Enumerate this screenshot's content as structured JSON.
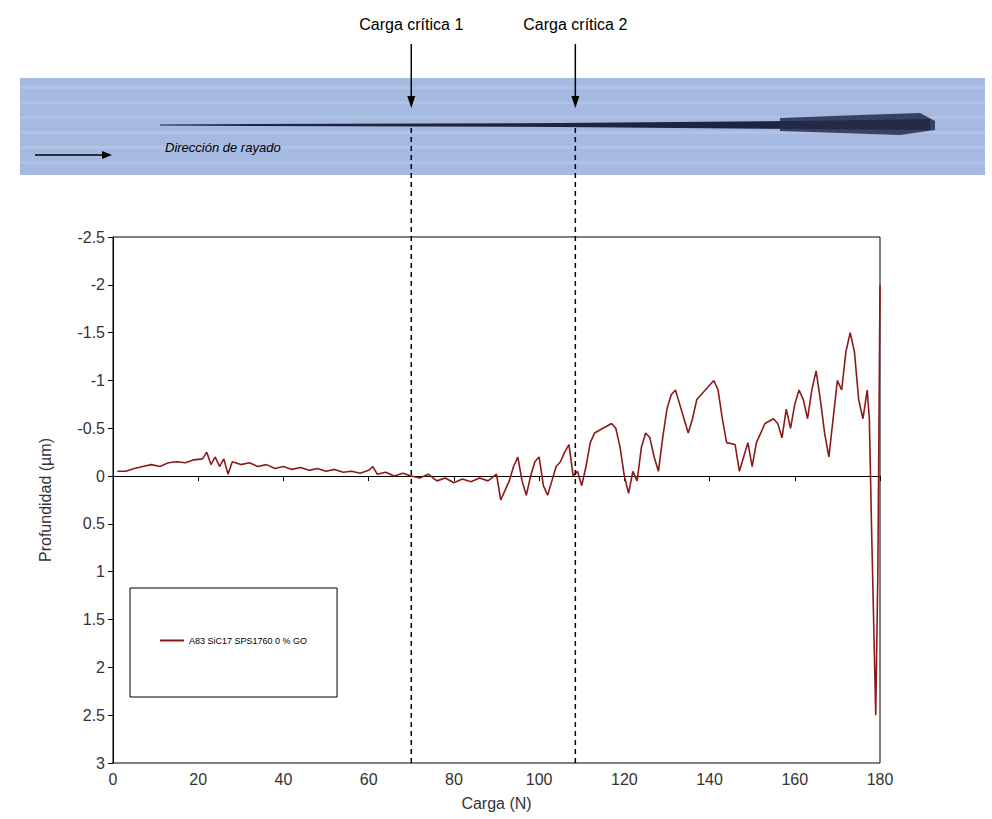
{
  "chart_data": {
    "type": "line",
    "x_label": "Carga (N)",
    "y_label": "Profundidad (µm)",
    "x": [
      1,
      3,
      5,
      7,
      9,
      11,
      13,
      15,
      17,
      19,
      21,
      22,
      23,
      24,
      25,
      26,
      27,
      28,
      30,
      32,
      34,
      36,
      38,
      40,
      42,
      44,
      46,
      48,
      50,
      52,
      54,
      56,
      58,
      60,
      61,
      62,
      64,
      66,
      68,
      70,
      72,
      74,
      76,
      78,
      80,
      82,
      84,
      86,
      88,
      90,
      91,
      92,
      93,
      94,
      95,
      96,
      97,
      98,
      99,
      100,
      101,
      102,
      103,
      104,
      105,
      106,
      107,
      108,
      109,
      110,
      111,
      112,
      113,
      115,
      117,
      118,
      119,
      120,
      121,
      122,
      123,
      124,
      125,
      126,
      127,
      128,
      129,
      130,
      131,
      132,
      133,
      134,
      135,
      136,
      137,
      139,
      141,
      142,
      143,
      144,
      146,
      147,
      148,
      149,
      150,
      151,
      152,
      153,
      155,
      156,
      157,
      158,
      159,
      160,
      161,
      162,
      163,
      164,
      165,
      166,
      167,
      168,
      169,
      170,
      171,
      172,
      173,
      174,
      175,
      176,
      177,
      177.5,
      178,
      178.5,
      179,
      179.5,
      180
    ],
    "series": [
      {
        "name": "A83 SiC17 SPS1760 0 % GO",
        "color": "#8b1a1a",
        "line_style": "solid",
        "values": [
          -0.05,
          -0.05,
          -0.08,
          -0.1,
          -0.12,
          -0.1,
          -0.14,
          -0.15,
          -0.14,
          -0.17,
          -0.18,
          -0.25,
          -0.12,
          -0.2,
          -0.1,
          -0.18,
          -0.02,
          -0.15,
          -0.12,
          -0.14,
          -0.1,
          -0.12,
          -0.08,
          -0.1,
          -0.07,
          -0.09,
          -0.06,
          -0.08,
          -0.05,
          -0.07,
          -0.04,
          -0.05,
          -0.03,
          -0.06,
          -0.1,
          -0.02,
          -0.04,
          0,
          -0.03,
          0,
          0.02,
          -0.02,
          0.05,
          0.02,
          0.07,
          0.03,
          0.06,
          0.02,
          0.05,
          -0.02,
          0.25,
          0.15,
          0.05,
          -0.1,
          -0.2,
          0.05,
          0.2,
          0,
          -0.15,
          -0.2,
          0.1,
          0.2,
          0.05,
          -0.1,
          -0.15,
          -0.25,
          -0.33,
          0,
          -0.05,
          0.1,
          -0.1,
          -0.35,
          -0.45,
          -0.5,
          -0.55,
          -0.5,
          -0.3,
          0,
          0.18,
          -0.05,
          0.05,
          -0.3,
          -0.45,
          -0.4,
          -0.2,
          -0.05,
          -0.4,
          -0.7,
          -0.85,
          -0.9,
          -0.75,
          -0.6,
          -0.45,
          -0.6,
          -0.8,
          -0.9,
          -1.0,
          -0.9,
          -0.6,
          -0.35,
          -0.33,
          -0.05,
          -0.2,
          -0.35,
          -0.1,
          -0.35,
          -0.45,
          -0.55,
          -0.6,
          -0.55,
          -0.4,
          -0.7,
          -0.5,
          -0.75,
          -0.9,
          -0.8,
          -0.6,
          -0.9,
          -1.1,
          -0.8,
          -0.45,
          -0.2,
          -0.6,
          -1.0,
          -0.9,
          -1.3,
          -1.5,
          -1.3,
          -0.8,
          -0.6,
          -0.9,
          -0.6,
          0.5,
          1.5,
          2.5,
          1.0,
          -2.0
        ]
      }
    ],
    "xlim": [
      0,
      180
    ],
    "xticks": [
      0,
      20,
      40,
      60,
      80,
      100,
      120,
      140,
      160,
      180
    ],
    "ylim": [
      -2.5,
      3
    ],
    "yticks": [
      -2.5,
      -2,
      -1.5,
      -1,
      -0.5,
      0,
      0.5,
      1,
      1.5,
      2,
      2.5,
      3
    ],
    "grid": false,
    "legend": "lower left",
    "annotations": [
      {
        "text": "Carga crítica 1",
        "x": 70
      },
      {
        "text": "Carga crítica 2",
        "x": 108.5
      },
      {
        "text": "Dirección de rayado"
      }
    ]
  }
}
